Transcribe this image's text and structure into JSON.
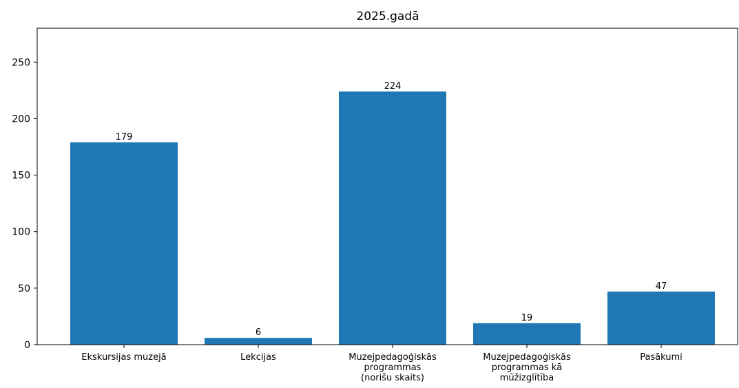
{
  "chart_data": {
    "type": "bar",
    "title": "2025.gadā",
    "xlabel": "",
    "ylabel": "",
    "categories": [
      [
        "Ekskursijas muzejā"
      ],
      [
        "Lekcijas"
      ],
      [
        "Muzejpedagoģiskās",
        "programmas",
        "(norišu skaits)"
      ],
      [
        "Muzejpedagoģiskās",
        "programmas kā",
        "mūžizglītība"
      ],
      [
        "Pasākumi"
      ]
    ],
    "values": [
      179,
      6,
      224,
      19,
      47
    ],
    "ylim": [
      0,
      280
    ],
    "yticks": [
      0,
      50,
      100,
      150,
      200,
      250
    ],
    "bar_color": "#1f77b4",
    "grid": false
  }
}
